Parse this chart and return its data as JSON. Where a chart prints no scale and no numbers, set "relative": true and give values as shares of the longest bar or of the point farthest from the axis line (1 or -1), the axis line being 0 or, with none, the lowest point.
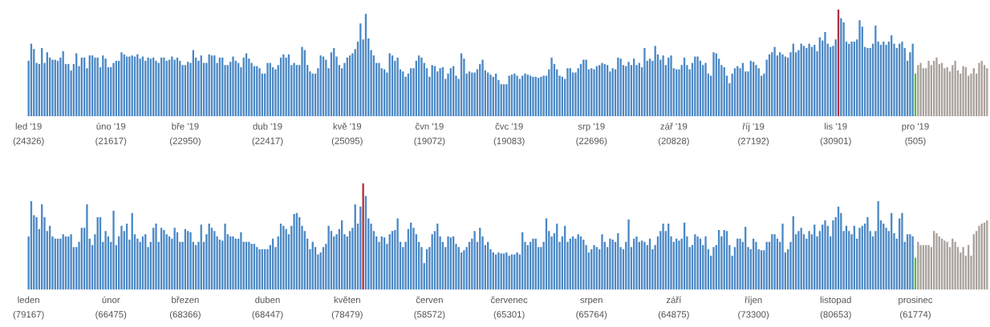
{
  "chart_data": [
    {
      "type": "bar",
      "relative": true,
      "categories": [
        "led '19\n(24326)",
        null,
        null,
        null,
        null,
        null,
        null,
        null,
        null,
        null,
        null,
        null,
        null,
        null,
        null,
        null,
        null,
        null,
        null,
        null,
        null,
        null,
        null,
        null,
        null,
        null,
        null,
        null,
        null,
        null,
        null,
        "úno '19\n(21617)",
        null,
        null,
        null,
        null,
        null,
        null,
        null,
        null,
        null,
        null,
        null,
        null,
        null,
        null,
        null,
        null,
        null,
        null,
        null,
        null,
        null,
        null,
        null,
        null,
        null,
        null,
        null,
        "bře '19\n(22950)",
        null,
        null,
        null,
        null,
        null,
        null,
        null,
        null,
        null,
        null,
        null,
        null,
        null,
        null,
        null,
        null,
        null,
        null,
        null,
        null,
        null,
        null,
        null,
        null,
        null,
        null,
        null,
        null,
        null,
        null,
        "dub '19\n(22417)",
        null,
        null,
        null,
        null,
        null,
        null,
        null,
        null,
        null,
        null,
        null,
        null,
        null,
        null,
        null,
        null,
        null,
        null,
        null,
        null,
        null,
        null,
        null,
        null,
        null,
        null,
        null,
        null,
        null,
        "kvě '19\n(25095)",
        null,
        null,
        null,
        null,
        null,
        null,
        null,
        null,
        null,
        null,
        null,
        null,
        null,
        null,
        null,
        null,
        null,
        null,
        null,
        null,
        null,
        null,
        null,
        null,
        null,
        null,
        null,
        null,
        null,
        null,
        "čvn '19\n(19072)",
        null,
        null,
        null,
        null,
        null,
        null,
        null,
        null,
        null,
        null,
        null,
        null,
        null,
        null,
        null,
        null,
        null,
        null,
        null,
        null,
        null,
        null,
        null,
        null,
        null,
        null,
        null,
        null,
        null,
        "čvc '19\n(19083)",
        null,
        null,
        null,
        null,
        null,
        null,
        null,
        null,
        null,
        null,
        null,
        null,
        null,
        null,
        null,
        null,
        null,
        null,
        null,
        null,
        null,
        null,
        null,
        null,
        null,
        null,
        null,
        null,
        null,
        null,
        "srp '19\n(22696)",
        null,
        null,
        null,
        null,
        null,
        null,
        null,
        null,
        null,
        null,
        null,
        null,
        null,
        null,
        null,
        null,
        null,
        null,
        null,
        null,
        null,
        null,
        null,
        null,
        null,
        null,
        null,
        null,
        null,
        null,
        "zář '19\n(20828)",
        null,
        null,
        null,
        null,
        null,
        null,
        null,
        null,
        null,
        null,
        null,
        null,
        null,
        null,
        null,
        null,
        null,
        null,
        null,
        null,
        null,
        null,
        null,
        null,
        null,
        null,
        null,
        null,
        null,
        "říj '19\n(27192)",
        null,
        null,
        null,
        null,
        null,
        null,
        null,
        null,
        null,
        null,
        null,
        null,
        null,
        null,
        null,
        null,
        null,
        null,
        null,
        null,
        null,
        null,
        null,
        null,
        null,
        null,
        null,
        null,
        null,
        null,
        "lis '19\n(30901)",
        null,
        null,
        null,
        null,
        null,
        null,
        null,
        null,
        null,
        null,
        null,
        null,
        null,
        null,
        null,
        null,
        null,
        null,
        null,
        null,
        null,
        null,
        null,
        null,
        null,
        null,
        null,
        null,
        null,
        "pro '19\n(505)",
        null,
        null,
        null,
        null,
        null,
        null,
        null,
        null,
        null,
        null,
        null,
        null,
        null,
        null,
        null,
        null,
        null,
        null,
        null,
        null,
        null,
        null,
        null,
        null,
        null,
        null,
        null
      ],
      "values": [
        0.52,
        0.68,
        0.63,
        0.5,
        0.49,
        0.64,
        0.5,
        0.6,
        0.55,
        0.53,
        0.53,
        0.52,
        0.55,
        0.61,
        0.49,
        0.49,
        0.43,
        0.49,
        0.59,
        0.47,
        0.55,
        0.55,
        0.45,
        0.57,
        0.57,
        0.55,
        0.55,
        0.46,
        0.57,
        0.54,
        0.46,
        0.46,
        0.5,
        0.52,
        0.52,
        0.6,
        0.58,
        0.56,
        0.56,
        0.57,
        0.56,
        0.58,
        0.54,
        0.56,
        0.52,
        0.55,
        0.54,
        0.55,
        0.52,
        0.5,
        0.55,
        0.55,
        0.52,
        0.53,
        0.56,
        0.53,
        0.55,
        0.52,
        0.48,
        0.48,
        0.51,
        0.5,
        0.62,
        0.55,
        0.52,
        0.57,
        0.5,
        0.5,
        0.58,
        0.57,
        0.57,
        0.5,
        0.55,
        0.55,
        0.48,
        0.48,
        0.51,
        0.56,
        0.52,
        0.5,
        0.46,
        0.55,
        0.59,
        0.54,
        0.5,
        0.47,
        0.47,
        0.45,
        0.4,
        0.4,
        0.5,
        0.5,
        0.46,
        0.44,
        0.48,
        0.55,
        0.58,
        0.55,
        0.58,
        0.48,
        0.5,
        0.48,
        0.48,
        0.65,
        0.62,
        0.48,
        0.42,
        0.4,
        0.4,
        0.45,
        0.57,
        0.56,
        0.53,
        0.45,
        0.6,
        0.64,
        0.56,
        0.48,
        0.45,
        0.5,
        0.55,
        0.57,
        0.59,
        0.63,
        0.7,
        0.87,
        0.72,
        0.96,
        0.73,
        0.62,
        0.57,
        0.5,
        0.5,
        0.45,
        0.44,
        0.41,
        0.59,
        0.57,
        0.52,
        0.55,
        0.44,
        0.42,
        0.37,
        0.4,
        0.45,
        0.45,
        0.52,
        0.57,
        0.55,
        0.5,
        0.45,
        0.37,
        0.48,
        0.47,
        0.42,
        0.45,
        0.46,
        0.35,
        0.4,
        0.45,
        0.47,
        0.38,
        0.35,
        0.59,
        0.54,
        0.4,
        0.42,
        0.41,
        0.41,
        0.44,
        0.49,
        0.53,
        0.43,
        0.41,
        0.39,
        0.37,
        0.4,
        0.34,
        0.3,
        0.3,
        0.3,
        0.38,
        0.39,
        0.4,
        0.38,
        0.35,
        0.38,
        0.4,
        0.39,
        0.38,
        0.37,
        0.37,
        0.36,
        0.37,
        0.38,
        0.38,
        0.44,
        0.55,
        0.49,
        0.44,
        0.38,
        0.37,
        0.35,
        0.45,
        0.45,
        0.41,
        0.41,
        0.45,
        0.49,
        0.53,
        0.53,
        0.44,
        0.45,
        0.44,
        0.47,
        0.48,
        0.5,
        0.49,
        0.48,
        0.42,
        0.45,
        0.44,
        0.55,
        0.54,
        0.48,
        0.47,
        0.51,
        0.48,
        0.54,
        0.48,
        0.5,
        0.46,
        0.64,
        0.52,
        0.54,
        0.52,
        0.66,
        0.58,
        0.53,
        0.57,
        0.48,
        0.55,
        0.57,
        0.45,
        0.44,
        0.44,
        0.48,
        0.55,
        0.48,
        0.44,
        0.5,
        0.56,
        0.56,
        0.52,
        0.48,
        0.5,
        0.4,
        0.38,
        0.6,
        0.59,
        0.54,
        0.48,
        0.46,
        0.38,
        0.31,
        0.4,
        0.45,
        0.47,
        0.45,
        0.5,
        0.42,
        0.42,
        0.52,
        0.51,
        0.48,
        0.45,
        0.38,
        0.4,
        0.53,
        0.58,
        0.6,
        0.65,
        0.57,
        0.6,
        0.58,
        0.56,
        0.55,
        0.6,
        0.68,
        0.6,
        0.62,
        0.68,
        0.66,
        0.64,
        0.68,
        0.65,
        0.67,
        0.61,
        0.74,
        0.71,
        0.79,
        0.68,
        0.65,
        0.66,
        0.72,
        1,
        0.92,
        0.88,
        0.7,
        0.68,
        0.7,
        0.7,
        0.72,
        0.9,
        0.84,
        0.65,
        0.64,
        0.64,
        0.68,
        0.85,
        0.7,
        0.67,
        0.7,
        0.67,
        0.7,
        0.76,
        0.68,
        0.64,
        0.68,
        0.7,
        0.64,
        0.52,
        0.6,
        0.68,
        0.4,
        0.48,
        0.5,
        0.45,
        0.45,
        0.52,
        0.48,
        0.52,
        0.55,
        0.49,
        0.5,
        0.45,
        0.46,
        0.42,
        0.48,
        0.52,
        0.43,
        0.4,
        0.47,
        0.46,
        0.38,
        0.4,
        0.45,
        0.4,
        0.5,
        0.52,
        0.48,
        0.45
      ],
      "colors": [
        "#4b88c5",
        "#4b88c5",
        "#4b88c5",
        "#4b88c5",
        "#4b88c5",
        "#4b88c5",
        "#4b88c5",
        "#4b88c5",
        "#4b88c5",
        "#4b88c5",
        "#4b88c5",
        "#4b88c5",
        "#4b88c5",
        "#4b88c5",
        "#4b88c5",
        "#4b88c5",
        "#4b88c5",
        "#4b88c5",
        "#4b88c5",
        "#4b88c5",
        "#4b88c5",
        "#4b88c5",
        "#4b88c5",
        "#4b88c5",
        "#4b88c5",
        "#4b88c5",
        "#4b88c5",
        "#4b88c5",
        "#4b88c5",
        "#4b88c5",
        "#4b88c5",
        "#4b88c5",
        "#4b88c5",
        "#4b88c5",
        "#4b88c5",
        "#4b88c5",
        "#4b88c5",
        "#4b88c5",
        "#4b88c5",
        "#4b88c5",
        "#4b88c5",
        "#4b88c5",
        "#4b88c5",
        "#4b88c5",
        "#4b88c5",
        "#4b88c5",
        "#4b88c5",
        "#4b88c5",
        "#4b88c5",
        "#4b88c5",
        "#4b88c5",
        "#4b88c5",
        "#4b88c5",
        "#4b88c5",
        "#4b88c5",
        "#4b88c5",
        "#4b88c5",
        "#4b88c5",
        "#4b88c5",
        "#4b88c5",
        "#4b88c5",
        "#4b88c5",
        "#4b88c5",
        "#4b88c5",
        "#4b88c5",
        "#4b88c5",
        "#4b88c5",
        "#4b88c5",
        "#4b88c5",
        "#4b88c5",
        "#4b88c5",
        "#4b88c5",
        "#4b88c5",
        "#4b88c5",
        "#4b88c5",
        "#4b88c5",
        "#4b88c5",
        "#4b88c5",
        "#4b88c5",
        "#4b88c5",
        "#4b88c5",
        "#4b88c5",
        "#4b88c5",
        "#4b88c5",
        "#4b88c5",
        "#4b88c5",
        "#4b88c5",
        "#4b88c5",
        "#4b88c5",
        "#4b88c5",
        "#4b88c5",
        "#4b88c5",
        "#4b88c5",
        "#4b88c5",
        "#4b88c5",
        "#4b88c5",
        "#4b88c5",
        "#4b88c5",
        "#4b88c5",
        "#4b88c5",
        "#4b88c5",
        "#4b88c5",
        "#4b88c5",
        "#4b88c5",
        "#4b88c5",
        "#4b88c5",
        "#4b88c5",
        "#4b88c5",
        "#4b88c5",
        "#4b88c5",
        "#4b88c5",
        "#4b88c5",
        "#4b88c5",
        "#4b88c5",
        "#4b88c5",
        "#4b88c5",
        "#4b88c5",
        "#4b88c5",
        "#4b88c5",
        "#4b88c5",
        "#4b88c5",
        "#4b88c5",
        "#4b88c5",
        "#4b88c5",
        "#4b88c5",
        "#4b88c5",
        "#4b88c5",
        "#4b88c5",
        "#4b88c5",
        "#4b88c5",
        "#4b88c5",
        "#4b88c5",
        "#4b88c5",
        "#4b88c5",
        "#4b88c5",
        "#4b88c5",
        "#4b88c5",
        "#4b88c5",
        "#4b88c5",
        "#4b88c5",
        "#4b88c5",
        "#4b88c5",
        "#4b88c5",
        "#4b88c5",
        "#4b88c5",
        "#4b88c5",
        "#4b88c5",
        "#4b88c5",
        "#4b88c5",
        "#4b88c5",
        "#4b88c5",
        "#4b88c5",
        "#4b88c5",
        "#4b88c5",
        "#4b88c5",
        "#4b88c5",
        "#4b88c5",
        "#4b88c5",
        "#4b88c5",
        "#4b88c5",
        "#4b88c5",
        "#4b88c5",
        "#4b88c5",
        "#4b88c5",
        "#4b88c5",
        "#4b88c5",
        "#4b88c5",
        "#4b88c5",
        "#4b88c5",
        "#4b88c5",
        "#4b88c5",
        "#4b88c5",
        "#4b88c5",
        "#4b88c5",
        "#4b88c5",
        "#4b88c5",
        "#4b88c5",
        "#4b88c5",
        "#4b88c5",
        "#4b88c5",
        "#4b88c5",
        "#4b88c5",
        "#4b88c5",
        "#4b88c5",
        "#4b88c5",
        "#4b88c5",
        "#4b88c5",
        "#4b88c5",
        "#4b88c5",
        "#4b88c5",
        "#4b88c5",
        "#4b88c5",
        "#4b88c5",
        "#4b88c5",
        "#4b88c5",
        "#4b88c5",
        "#4b88c5",
        "#4b88c5",
        "#4b88c5",
        "#4b88c5",
        "#4b88c5",
        "#4b88c5",
        "#4b88c5",
        "#4b88c5",
        "#4b88c5",
        "#4b88c5",
        "#4b88c5",
        "#4b88c5",
        "#4b88c5",
        "#4b88c5",
        "#4b88c5",
        "#4b88c5",
        "#4b88c5",
        "#4b88c5",
        "#4b88c5",
        "#4b88c5",
        "#4b88c5",
        "#4b88c5",
        "#4b88c5",
        "#4b88c5",
        "#4b88c5",
        "#4b88c5",
        "#4b88c5",
        "#4b88c5",
        "#4b88c5",
        "#4b88c5",
        "#4b88c5",
        "#4b88c5",
        "#4b88c5",
        "#4b88c5",
        "#4b88c5",
        "#4b88c5",
        "#4b88c5",
        "#4b88c5",
        "#4b88c5",
        "#4b88c5",
        "#4b88c5",
        "#4b88c5",
        "#4b88c5",
        "#4b88c5",
        "#4b88c5",
        "#4b88c5",
        "#4b88c5",
        "#4b88c5",
        "#4b88c5",
        "#4b88c5",
        "#4b88c5",
        "#4b88c5",
        "#4b88c5",
        "#4b88c5",
        "#4b88c5",
        "#4b88c5",
        "#4b88c5",
        "#4b88c5",
        "#4b88c5",
        "#4b88c5",
        "#4b88c5",
        "#4b88c5",
        "#4b88c5",
        "#4b88c5",
        "#4b88c5",
        "#4b88c5",
        "#4b88c5",
        "#4b88c5",
        "#4b88c5",
        "#4b88c5",
        "#4b88c5",
        "#4b88c5",
        "#4b88c5",
        "#4b88c5",
        "#4b88c5",
        "#4b88c5",
        "#4b88c5",
        "#4b88c5",
        "#4b88c5",
        "#4b88c5",
        "#4b88c5",
        "#4b88c5",
        "#4b88c5",
        "#4b88c5",
        "#4b88c5",
        "#4b88c5",
        "#4b88c5",
        "#4b88c5",
        "#4b88c5",
        "#4b88c5",
        "#4b88c5",
        "#4b88c5",
        "#4b88c5",
        "#4b88c5",
        "#4b88c5",
        "#4b88c5",
        "#4b88c5",
        "#4b88c5",
        "#4b88c5",
        "#4b88c5",
        "#4b88c5",
        "#4b88c5",
        "#4b88c5",
        "#4b88c5",
        "#4b88c5",
        "#4b88c5",
        "#4b88c5",
        "#4b88c5",
        "#4b88c5",
        "#b0303a",
        "#4b88c5",
        "#4b88c5",
        "#4b88c5",
        "#4b88c5",
        "#4b88c5",
        "#4b88c5",
        "#4b88c5",
        "#4b88c5",
        "#4b88c5",
        "#4b88c5",
        "#4b88c5",
        "#4b88c5",
        "#4b88c5",
        "#4b88c5",
        "#4b88c5",
        "#4b88c5",
        "#4b88c5",
        "#4b88c5",
        "#4b88c5",
        "#4b88c5",
        "#4b88c5",
        "#4b88c5",
        "#4b88c5",
        "#4b88c5",
        "#4b88c5",
        "#4b88c5",
        "#4b88c5",
        "#4b88c5",
        "#5cb84c",
        "#a9a19b",
        "#a9a19b",
        "#a9a19b",
        "#a9a19b",
        "#a9a19b",
        "#a9a19b",
        "#a9a19b",
        "#a9a19b",
        "#a9a19b",
        "#a9a19b",
        "#a9a19b",
        "#a9a19b",
        "#a9a19b",
        "#a9a19b",
        "#a9a19b",
        "#a9a19b",
        "#a9a19b",
        "#a9a19b",
        "#a9a19b",
        "#a9a19b",
        "#a9a19b",
        "#a9a19b",
        "#a9a19b",
        "#a9a19b",
        "#a9a19b",
        "#a9a19b",
        "#a9a19b"
      ]
    },
    {
      "type": "bar",
      "relative": true,
      "categories": [
        "leden\n(79167)",
        null,
        null,
        null,
        null,
        null,
        null,
        null,
        null,
        null,
        null,
        null,
        null,
        null,
        null,
        null,
        null,
        null,
        null,
        null,
        null,
        null,
        null,
        null,
        null,
        null,
        null,
        null,
        null,
        null,
        null,
        "únor\n(66475)",
        null,
        null,
        null,
        null,
        null,
        null,
        null,
        null,
        null,
        null,
        null,
        null,
        null,
        null,
        null,
        null,
        null,
        null,
        null,
        null,
        null,
        null,
        null,
        null,
        null,
        null,
        null,
        "březen\n(68366)",
        null,
        null,
        null,
        null,
        null,
        null,
        null,
        null,
        null,
        null,
        null,
        null,
        null,
        null,
        null,
        null,
        null,
        null,
        null,
        null,
        null,
        null,
        null,
        null,
        null,
        null,
        null,
        null,
        null,
        null,
        "duben\n(68447)",
        null,
        null,
        null,
        null,
        null,
        null,
        null,
        null,
        null,
        null,
        null,
        null,
        null,
        null,
        null,
        null,
        null,
        null,
        null,
        null,
        null,
        null,
        null,
        null,
        null,
        null,
        null,
        null,
        null,
        "květen\n(78479)",
        null,
        null,
        null,
        null,
        null,
        null,
        null,
        null,
        null,
        null,
        null,
        null,
        null,
        null,
        null,
        null,
        null,
        null,
        null,
        null,
        null,
        null,
        null,
        null,
        null,
        null,
        null,
        null,
        null,
        null,
        "červen\n(58572)",
        null,
        null,
        null,
        null,
        null,
        null,
        null,
        null,
        null,
        null,
        null,
        null,
        null,
        null,
        null,
        null,
        null,
        null,
        null,
        null,
        null,
        null,
        null,
        null,
        null,
        null,
        null,
        null,
        null,
        "červenec\n(65301)",
        null,
        null,
        null,
        null,
        null,
        null,
        null,
        null,
        null,
        null,
        null,
        null,
        null,
        null,
        null,
        null,
        null,
        null,
        null,
        null,
        null,
        null,
        null,
        null,
        null,
        null,
        null,
        null,
        null,
        null,
        "srpen\n(65764)",
        null,
        null,
        null,
        null,
        null,
        null,
        null,
        null,
        null,
        null,
        null,
        null,
        null,
        null,
        null,
        null,
        null,
        null,
        null,
        null,
        null,
        null,
        null,
        null,
        null,
        null,
        null,
        null,
        null,
        null,
        "září\n(64875)",
        null,
        null,
        null,
        null,
        null,
        null,
        null,
        null,
        null,
        null,
        null,
        null,
        null,
        null,
        null,
        null,
        null,
        null,
        null,
        null,
        null,
        null,
        null,
        null,
        null,
        null,
        null,
        null,
        null,
        "říjen\n(73300)",
        null,
        null,
        null,
        null,
        null,
        null,
        null,
        null,
        null,
        null,
        null,
        null,
        null,
        null,
        null,
        null,
        null,
        null,
        null,
        null,
        null,
        null,
        null,
        null,
        null,
        null,
        null,
        null,
        null,
        null,
        "listopad\n(80653)",
        null,
        null,
        null,
        null,
        null,
        null,
        null,
        null,
        null,
        null,
        null,
        null,
        null,
        null,
        null,
        null,
        null,
        null,
        null,
        null,
        null,
        null,
        null,
        null,
        null,
        null,
        null,
        null,
        null,
        "prosinec\n(61774)",
        null,
        null,
        null,
        null,
        null,
        null,
        null,
        null,
        null,
        null,
        null,
        null,
        null,
        null,
        null,
        null,
        null,
        null,
        null,
        null,
        null,
        null,
        null,
        null,
        null,
        null,
        null
      ],
      "values": [
        0.5,
        0.83,
        0.7,
        0.68,
        0.57,
        0.8,
        0.68,
        0.55,
        0.6,
        0.5,
        0.48,
        0.48,
        0.48,
        0.52,
        0.5,
        0.5,
        0.52,
        0.4,
        0.4,
        0.45,
        0.58,
        0.58,
        0.8,
        0.48,
        0.42,
        0.52,
        0.68,
        0.68,
        0.45,
        0.55,
        0.5,
        0.45,
        0.74,
        0.42,
        0.5,
        0.6,
        0.55,
        0.62,
        0.47,
        0.72,
        0.52,
        0.48,
        0.45,
        0.5,
        0.52,
        0.4,
        0.45,
        0.58,
        0.62,
        0.45,
        0.58,
        0.56,
        0.52,
        0.5,
        0.48,
        0.58,
        0.54,
        0.45,
        0.45,
        0.57,
        0.55,
        0.54,
        0.45,
        0.42,
        0.45,
        0.61,
        0.45,
        0.52,
        0.62,
        0.58,
        0.55,
        0.5,
        0.47,
        0.46,
        0.62,
        0.52,
        0.5,
        0.5,
        0.48,
        0.48,
        0.54,
        0.45,
        0.45,
        0.45,
        0.43,
        0.43,
        0.4,
        0.38,
        0.38,
        0.38,
        0.38,
        0.42,
        0.48,
        0.4,
        0.5,
        0.62,
        0.6,
        0.57,
        0.52,
        0.6,
        0.71,
        0.72,
        0.68,
        0.6,
        0.55,
        0.48,
        0.38,
        0.45,
        0.4,
        0.33,
        0.35,
        0.4,
        0.43,
        0.6,
        0.55,
        0.5,
        0.52,
        0.57,
        0.65,
        0.52,
        0.5,
        0.55,
        0.58,
        0.8,
        0.62,
        0.78,
        1,
        0.88,
        0.67,
        0.62,
        0.55,
        0.5,
        0.45,
        0.5,
        0.49,
        0.43,
        0.52,
        0.55,
        0.56,
        0.67,
        0.45,
        0.4,
        0.45,
        0.57,
        0.63,
        0.58,
        0.52,
        0.45,
        0.4,
        0.25,
        0.38,
        0.4,
        0.52,
        0.55,
        0.62,
        0.5,
        0.45,
        0.4,
        0.5,
        0.49,
        0.5,
        0.43,
        0.4,
        0.35,
        0.37,
        0.4,
        0.45,
        0.48,
        0.55,
        0.45,
        0.58,
        0.5,
        0.42,
        0.45,
        0.38,
        0.35,
        0.33,
        0.35,
        0.34,
        0.34,
        0.35,
        0.32,
        0.33,
        0.33,
        0.35,
        0.33,
        0.54,
        0.45,
        0.42,
        0.45,
        0.48,
        0.48,
        0.4,
        0.4,
        0.45,
        0.67,
        0.55,
        0.5,
        0.53,
        0.62,
        0.45,
        0.5,
        0.6,
        0.45,
        0.48,
        0.5,
        0.48,
        0.52,
        0.5,
        0.47,
        0.42,
        0.35,
        0.38,
        0.42,
        0.4,
        0.38,
        0.52,
        0.45,
        0.4,
        0.48,
        0.47,
        0.45,
        0.53,
        0.4,
        0.38,
        0.45,
        0.66,
        0.4,
        0.48,
        0.5,
        0.45,
        0.46,
        0.45,
        0.42,
        0.48,
        0.38,
        0.42,
        0.5,
        0.55,
        0.62,
        0.55,
        0.62,
        0.5,
        0.45,
        0.48,
        0.46,
        0.48,
        0.63,
        0.5,
        0.4,
        0.42,
        0.52,
        0.5,
        0.48,
        0.42,
        0.5,
        0.38,
        0.32,
        0.4,
        0.42,
        0.56,
        0.5,
        0.56,
        0.55,
        0.42,
        0.32,
        0.4,
        0.48,
        0.48,
        0.45,
        0.59,
        0.4,
        0.38,
        0.48,
        0.45,
        0.38,
        0.37,
        0.37,
        0.45,
        0.45,
        0.52,
        0.52,
        0.48,
        0.45,
        0.62,
        0.35,
        0.38,
        0.45,
        0.69,
        0.52,
        0.55,
        0.58,
        0.52,
        0.48,
        0.55,
        0.52,
        0.61,
        0.5,
        0.55,
        0.61,
        0.65,
        0.6,
        0.5,
        0.65,
        0.68,
        0.78,
        0.72,
        0.55,
        0.6,
        0.55,
        0.52,
        0.6,
        0.48,
        0.58,
        0.6,
        0.62,
        0.68,
        0.55,
        0.5,
        0.55,
        0.83,
        0.65,
        0.62,
        0.58,
        0.55,
        0.72,
        0.53,
        0.48,
        0.67,
        0.72,
        0.45,
        0.52,
        0.52,
        0.5,
        0.3,
        0.45,
        0.42,
        0.42,
        0.42,
        0.42,
        0.4,
        0.55,
        0.53,
        0.5,
        0.48,
        0.46,
        0.45,
        0.4,
        0.48,
        0.45,
        0.4,
        0.35,
        0.4,
        0.32,
        0.42,
        0.32,
        0.52,
        0.55,
        0.6,
        0.62,
        0.63,
        0.65
      ],
      "colors": [
        "#4b88c5",
        "#4b88c5",
        "#4b88c5",
        "#4b88c5",
        "#4b88c5",
        "#4b88c5",
        "#4b88c5",
        "#4b88c5",
        "#4b88c5",
        "#4b88c5",
        "#4b88c5",
        "#4b88c5",
        "#4b88c5",
        "#4b88c5",
        "#4b88c5",
        "#4b88c5",
        "#4b88c5",
        "#4b88c5",
        "#4b88c5",
        "#4b88c5",
        "#4b88c5",
        "#4b88c5",
        "#4b88c5",
        "#4b88c5",
        "#4b88c5",
        "#4b88c5",
        "#4b88c5",
        "#4b88c5",
        "#4b88c5",
        "#4b88c5",
        "#4b88c5",
        "#4b88c5",
        "#4b88c5",
        "#4b88c5",
        "#4b88c5",
        "#4b88c5",
        "#4b88c5",
        "#4b88c5",
        "#4b88c5",
        "#4b88c5",
        "#4b88c5",
        "#4b88c5",
        "#4b88c5",
        "#4b88c5",
        "#4b88c5",
        "#4b88c5",
        "#4b88c5",
        "#4b88c5",
        "#4b88c5",
        "#4b88c5",
        "#4b88c5",
        "#4b88c5",
        "#4b88c5",
        "#4b88c5",
        "#4b88c5",
        "#4b88c5",
        "#4b88c5",
        "#4b88c5",
        "#4b88c5",
        "#4b88c5",
        "#4b88c5",
        "#4b88c5",
        "#4b88c5",
        "#4b88c5",
        "#4b88c5",
        "#4b88c5",
        "#4b88c5",
        "#4b88c5",
        "#4b88c5",
        "#4b88c5",
        "#4b88c5",
        "#4b88c5",
        "#4b88c5",
        "#4b88c5",
        "#4b88c5",
        "#4b88c5",
        "#4b88c5",
        "#4b88c5",
        "#4b88c5",
        "#4b88c5",
        "#4b88c5",
        "#4b88c5",
        "#4b88c5",
        "#4b88c5",
        "#4b88c5",
        "#4b88c5",
        "#4b88c5",
        "#4b88c5",
        "#4b88c5",
        "#4b88c5",
        "#4b88c5",
        "#4b88c5",
        "#4b88c5",
        "#4b88c5",
        "#4b88c5",
        "#4b88c5",
        "#4b88c5",
        "#4b88c5",
        "#4b88c5",
        "#4b88c5",
        "#4b88c5",
        "#4b88c5",
        "#4b88c5",
        "#4b88c5",
        "#4b88c5",
        "#4b88c5",
        "#4b88c5",
        "#4b88c5",
        "#4b88c5",
        "#4b88c5",
        "#4b88c5",
        "#4b88c5",
        "#4b88c5",
        "#4b88c5",
        "#4b88c5",
        "#4b88c5",
        "#4b88c5",
        "#4b88c5",
        "#4b88c5",
        "#4b88c5",
        "#4b88c5",
        "#4b88c5",
        "#4b88c5",
        "#4b88c5",
        "#4b88c5",
        "#4b88c5",
        "#b0303a",
        "#4b88c5",
        "#4b88c5",
        "#4b88c5",
        "#4b88c5",
        "#4b88c5",
        "#4b88c5",
        "#4b88c5",
        "#4b88c5",
        "#4b88c5",
        "#4b88c5",
        "#4b88c5",
        "#4b88c5",
        "#4b88c5",
        "#4b88c5",
        "#4b88c5",
        "#4b88c5",
        "#4b88c5",
        "#4b88c5",
        "#4b88c5",
        "#4b88c5",
        "#4b88c5",
        "#4b88c5",
        "#4b88c5",
        "#4b88c5",
        "#4b88c5",
        "#4b88c5",
        "#4b88c5",
        "#4b88c5",
        "#4b88c5",
        "#4b88c5",
        "#4b88c5",
        "#4b88c5",
        "#4b88c5",
        "#4b88c5",
        "#4b88c5",
        "#4b88c5",
        "#4b88c5",
        "#4b88c5",
        "#4b88c5",
        "#4b88c5",
        "#4b88c5",
        "#4b88c5",
        "#4b88c5",
        "#4b88c5",
        "#4b88c5",
        "#4b88c5",
        "#4b88c5",
        "#4b88c5",
        "#4b88c5",
        "#4b88c5",
        "#4b88c5",
        "#4b88c5",
        "#4b88c5",
        "#4b88c5",
        "#4b88c5",
        "#4b88c5",
        "#4b88c5",
        "#4b88c5",
        "#4b88c5",
        "#4b88c5",
        "#4b88c5",
        "#4b88c5",
        "#4b88c5",
        "#4b88c5",
        "#4b88c5",
        "#4b88c5",
        "#4b88c5",
        "#4b88c5",
        "#4b88c5",
        "#4b88c5",
        "#4b88c5",
        "#4b88c5",
        "#4b88c5",
        "#4b88c5",
        "#4b88c5",
        "#4b88c5",
        "#4b88c5",
        "#4b88c5",
        "#4b88c5",
        "#4b88c5",
        "#4b88c5",
        "#4b88c5",
        "#4b88c5",
        "#4b88c5",
        "#4b88c5",
        "#4b88c5",
        "#4b88c5",
        "#4b88c5",
        "#4b88c5",
        "#4b88c5",
        "#4b88c5",
        "#4b88c5",
        "#4b88c5",
        "#4b88c5",
        "#4b88c5",
        "#4b88c5",
        "#4b88c5",
        "#4b88c5",
        "#4b88c5",
        "#4b88c5",
        "#4b88c5",
        "#4b88c5",
        "#4b88c5",
        "#4b88c5",
        "#4b88c5",
        "#4b88c5",
        "#4b88c5",
        "#4b88c5",
        "#4b88c5",
        "#4b88c5",
        "#4b88c5",
        "#4b88c5",
        "#4b88c5",
        "#4b88c5",
        "#4b88c5",
        "#4b88c5",
        "#4b88c5",
        "#4b88c5",
        "#4b88c5",
        "#4b88c5",
        "#4b88c5",
        "#4b88c5",
        "#4b88c5",
        "#4b88c5",
        "#4b88c5",
        "#4b88c5",
        "#4b88c5",
        "#4b88c5",
        "#4b88c5",
        "#4b88c5",
        "#4b88c5",
        "#4b88c5",
        "#4b88c5",
        "#4b88c5",
        "#4b88c5",
        "#4b88c5",
        "#4b88c5",
        "#4b88c5",
        "#4b88c5",
        "#4b88c5",
        "#4b88c5",
        "#4b88c5",
        "#4b88c5",
        "#4b88c5",
        "#4b88c5",
        "#4b88c5",
        "#4b88c5",
        "#4b88c5",
        "#4b88c5",
        "#4b88c5",
        "#4b88c5",
        "#4b88c5",
        "#4b88c5",
        "#4b88c5",
        "#4b88c5",
        "#4b88c5",
        "#4b88c5",
        "#4b88c5",
        "#4b88c5",
        "#4b88c5",
        "#4b88c5",
        "#4b88c5",
        "#4b88c5",
        "#4b88c5",
        "#4b88c5",
        "#4b88c5",
        "#4b88c5",
        "#4b88c5",
        "#4b88c5",
        "#4b88c5",
        "#4b88c5",
        "#4b88c5",
        "#4b88c5",
        "#4b88c5",
        "#4b88c5",
        "#4b88c5",
        "#4b88c5",
        "#4b88c5",
        "#4b88c5",
        "#4b88c5",
        "#4b88c5",
        "#4b88c5",
        "#4b88c5",
        "#4b88c5",
        "#4b88c5",
        "#4b88c5",
        "#4b88c5",
        "#4b88c5",
        "#4b88c5",
        "#4b88c5",
        "#4b88c5",
        "#4b88c5",
        "#4b88c5",
        "#4b88c5",
        "#4b88c5",
        "#4b88c5",
        "#4b88c5",
        "#4b88c5",
        "#4b88c5",
        "#4b88c5",
        "#4b88c5",
        "#4b88c5",
        "#4b88c5",
        "#4b88c5",
        "#4b88c5",
        "#4b88c5",
        "#4b88c5",
        "#5cb84c",
        "#a9a19b",
        "#a9a19b",
        "#a9a19b",
        "#a9a19b",
        "#a9a19b",
        "#a9a19b",
        "#a9a19b",
        "#a9a19b",
        "#a9a19b",
        "#a9a19b",
        "#a9a19b",
        "#a9a19b",
        "#a9a19b",
        "#a9a19b",
        "#a9a19b",
        "#a9a19b",
        "#a9a19b",
        "#a9a19b",
        "#a9a19b",
        "#a9a19b",
        "#a9a19b",
        "#a9a19b",
        "#a9a19b",
        "#a9a19b",
        "#a9a19b",
        "#a9a19b",
        "#a9a19b"
      ]
    }
  ]
}
